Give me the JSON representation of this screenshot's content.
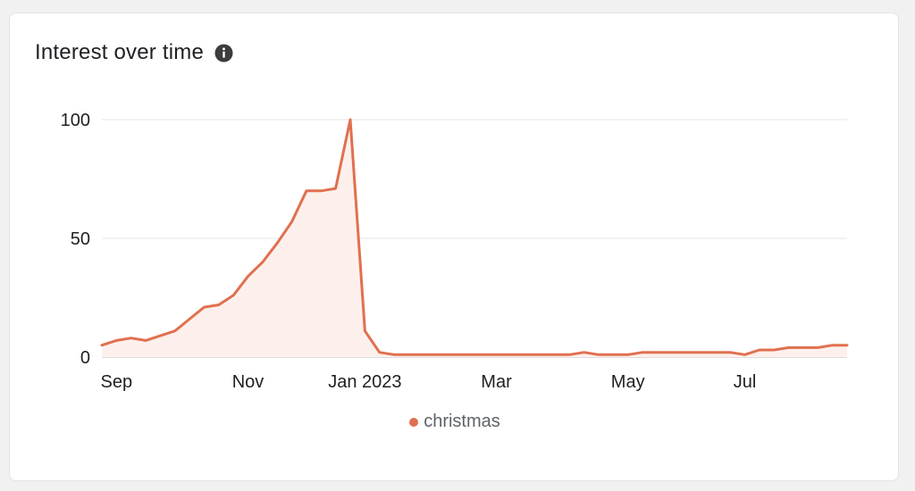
{
  "card": {
    "title": "Interest over time",
    "info_icon": "info-icon"
  },
  "colors": {
    "series": "#e0704f",
    "area": "#fdf0ec",
    "grid": "#e6e6e6",
    "axis": "#bdbdbd"
  },
  "chart_data": {
    "type": "area",
    "title": "",
    "xlabel": "",
    "ylabel": "",
    "ylim": [
      0,
      100
    ],
    "yticks": [
      0,
      50,
      100
    ],
    "grid": true,
    "legend": "bottom-center",
    "x_tick_labels": [
      {
        "label": "Sep",
        "date": "2022-09-04"
      },
      {
        "label": "Nov",
        "date": "2022-11-06"
      },
      {
        "label": "Jan 2023",
        "date": "2023-01-01"
      },
      {
        "label": "Mar",
        "date": "2023-03-05"
      },
      {
        "label": "May",
        "date": "2023-05-07"
      },
      {
        "label": "Jul",
        "date": "2023-07-02"
      }
    ],
    "series": [
      {
        "name": "christmas",
        "x": [
          "2022-08-28",
          "2022-09-04",
          "2022-09-11",
          "2022-09-18",
          "2022-09-25",
          "2022-10-02",
          "2022-10-09",
          "2022-10-16",
          "2022-10-23",
          "2022-10-30",
          "2022-11-06",
          "2022-11-13",
          "2022-11-20",
          "2022-11-27",
          "2022-12-04",
          "2022-12-11",
          "2022-12-18",
          "2022-12-25",
          "2023-01-01",
          "2023-01-08",
          "2023-01-15",
          "2023-01-22",
          "2023-01-29",
          "2023-02-05",
          "2023-02-12",
          "2023-02-19",
          "2023-02-26",
          "2023-03-05",
          "2023-03-12",
          "2023-03-19",
          "2023-03-26",
          "2023-04-02",
          "2023-04-09",
          "2023-04-16",
          "2023-04-23",
          "2023-04-30",
          "2023-05-07",
          "2023-05-14",
          "2023-05-21",
          "2023-05-28",
          "2023-06-04",
          "2023-06-11",
          "2023-06-18",
          "2023-06-25",
          "2023-07-02",
          "2023-07-09",
          "2023-07-16",
          "2023-07-23",
          "2023-07-30",
          "2023-08-06",
          "2023-08-13",
          "2023-08-20"
        ],
        "values": [
          5,
          7,
          8,
          7,
          9,
          11,
          16,
          21,
          22,
          26,
          34,
          40,
          48,
          57,
          70,
          70,
          71,
          100,
          11,
          2,
          1,
          1,
          1,
          1,
          1,
          1,
          1,
          1,
          1,
          1,
          1,
          1,
          1,
          2,
          1,
          1,
          1,
          2,
          2,
          2,
          2,
          2,
          2,
          2,
          1,
          3,
          3,
          4,
          4,
          4,
          5,
          5
        ]
      }
    ]
  }
}
